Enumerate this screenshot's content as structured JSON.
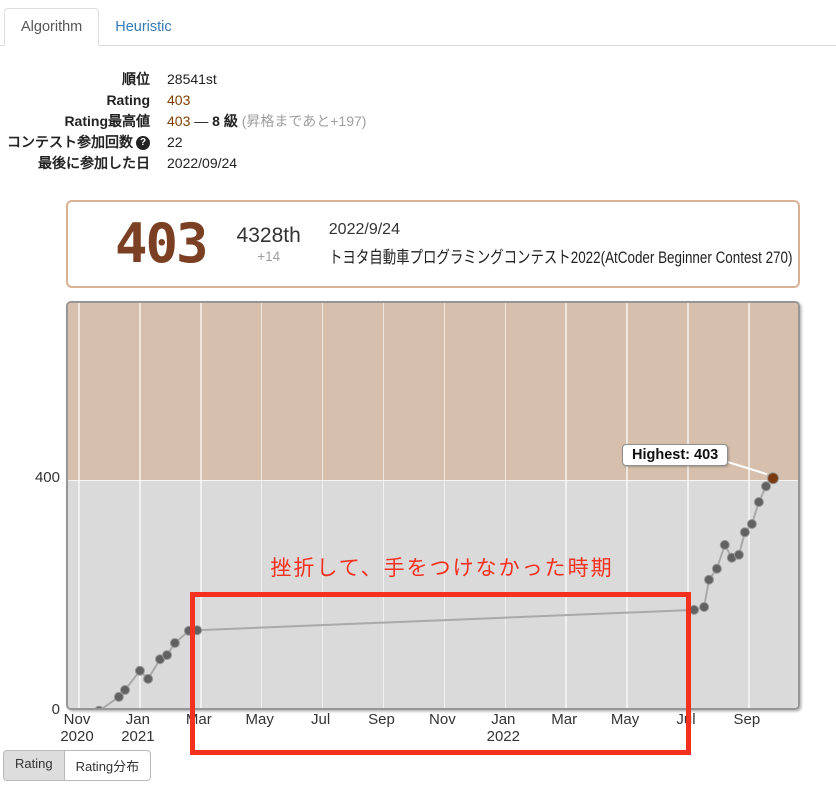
{
  "tabs": {
    "algorithm": "Algorithm",
    "heuristic": "Heuristic"
  },
  "stats": {
    "rows": [
      {
        "label": "順位",
        "parts": [
          {
            "text": "28541st",
            "style": "plain"
          }
        ]
      },
      {
        "label": "Rating",
        "parts": [
          {
            "text": "403",
            "style": "brown"
          }
        ]
      },
      {
        "label": "Rating最高値",
        "parts": [
          {
            "text": "403",
            "style": "brown"
          },
          {
            "text": " — ",
            "style": "plain"
          },
          {
            "text": "8 級",
            "style": "bold"
          },
          {
            "text": " (昇格まであと+197)",
            "style": "gray"
          }
        ]
      },
      {
        "label": "コンテスト参加回数",
        "help_icon": "?",
        "parts": [
          {
            "text": "22",
            "style": "plain"
          }
        ]
      },
      {
        "label": "最後に参加した日",
        "parts": [
          {
            "text": "2022/09/24",
            "style": "plain"
          }
        ]
      }
    ]
  },
  "latest_contest": {
    "rating": "403",
    "rank": "4328th",
    "diff": "+14",
    "date": "2022/9/24",
    "name": "トヨタ自動車プログラミングコンテスト2022(AtCoder Beginner Contest 270)"
  },
  "chart_data": {
    "type": "line",
    "series_name": "Rating history",
    "x_axis": {
      "unit": "months since 2020-11",
      "tick_months": [
        0,
        2,
        4,
        6,
        8,
        10,
        12,
        14,
        16,
        18,
        20,
        22
      ],
      "tick_labels": [
        [
          "Nov",
          "2020"
        ],
        [
          "Jan",
          "2021"
        ],
        [
          "Mar"
        ],
        [
          "May"
        ],
        [
          "Jul"
        ],
        [
          "Sep"
        ],
        [
          "Nov"
        ],
        [
          "Jan",
          "2022"
        ],
        [
          "Mar"
        ],
        [
          "May"
        ],
        [
          "Jul"
        ],
        [
          "Sep"
        ]
      ]
    },
    "y_axis": {
      "range": [
        0,
        705
      ],
      "ticks": [
        {
          "value": 0,
          "label": "0"
        },
        {
          "value": 400,
          "label": "400"
        }
      ]
    },
    "bands": [
      {
        "from": 0,
        "to": 400,
        "color": "#dadada"
      },
      {
        "from": 400,
        "to": 705,
        "color": "#d6c0ad"
      }
    ],
    "points": [
      [
        0.66,
        2
      ],
      [
        1.31,
        26
      ],
      [
        1.51,
        38
      ],
      [
        2.0,
        71
      ],
      [
        2.27,
        57
      ],
      [
        2.66,
        91
      ],
      [
        2.89,
        98
      ],
      [
        3.15,
        119
      ],
      [
        3.61,
        140
      ],
      [
        3.88,
        141
      ],
      [
        20.2,
        176
      ],
      [
        20.53,
        181
      ],
      [
        20.69,
        228
      ],
      [
        20.95,
        247
      ],
      [
        21.21,
        288
      ],
      [
        21.44,
        266
      ],
      [
        21.67,
        271
      ],
      [
        21.87,
        310
      ],
      [
        22.1,
        324
      ],
      [
        22.33,
        362
      ],
      [
        22.56,
        389
      ],
      [
        22.79,
        403
      ]
    ],
    "highest": {
      "label": "Highest: 403",
      "value": 403
    },
    "annotation": {
      "text": "挫折して、手をつけなかった時期"
    },
    "colors": {
      "line": "#a9a9a9",
      "point": "#616161",
      "point_stroke": "#989898",
      "last_point": "#7a3a0d",
      "grid": "#ffffff",
      "annotation_red": "#f5301f",
      "connector": "#ffffff"
    }
  },
  "footer_tabs": [
    {
      "label": "Rating",
      "active": true
    },
    {
      "label": "Rating分布",
      "active": false
    }
  ]
}
